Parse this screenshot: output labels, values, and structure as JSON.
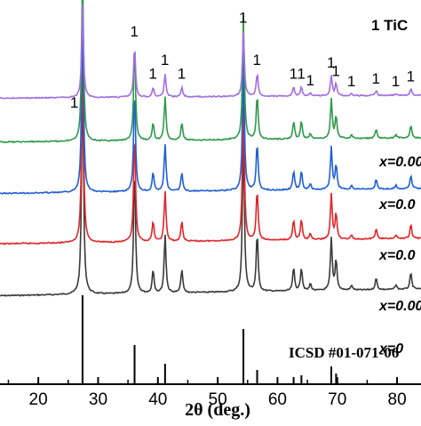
{
  "chart_data": {
    "type": "line",
    "title": "1 TiC",
    "xlabel": "2θ (deg.)",
    "xlim": [
      13,
      84
    ],
    "x_ticks": [
      20,
      30,
      40,
      50,
      60,
      70,
      80
    ],
    "x_tick_labels": [
      "20",
      "30",
      "40",
      "50",
      "60",
      "70",
      "80"
    ],
    "peak_marker": "1",
    "series": [
      {
        "name": "x=0",
        "color": "#3a3a3a"
      },
      {
        "name": "x=0.00",
        "color": "#e2262a"
      },
      {
        "name": "x=0.0",
        "color": "#1f5fd6"
      },
      {
        "name": "x=0.0",
        "color": "#2e9a4a"
      },
      {
        "name": "x=0.00",
        "color": "#a26ee0"
      }
    ],
    "peaks": [
      {
        "two_theta": 27.4,
        "rel": 1.0,
        "labeled": true
      },
      {
        "two_theta": 36.1,
        "rel": 0.55,
        "labeled": true
      },
      {
        "two_theta": 39.2,
        "rel": 0.1,
        "labeled": true
      },
      {
        "two_theta": 41.2,
        "rel": 0.25,
        "labeled": true
      },
      {
        "two_theta": 44.0,
        "rel": 0.1,
        "labeled": true
      },
      {
        "two_theta": 54.3,
        "rel": 0.7,
        "labeled": true
      },
      {
        "two_theta": 56.6,
        "rel": 0.25,
        "labeled": true
      },
      {
        "two_theta": 62.7,
        "rel": 0.1,
        "labeled": true
      },
      {
        "two_theta": 64.0,
        "rel": 0.1,
        "labeled": true
      },
      {
        "two_theta": 65.5,
        "rel": 0.03,
        "labeled": true
      },
      {
        "two_theta": 69.0,
        "rel": 0.22,
        "labeled": true
      },
      {
        "two_theta": 69.8,
        "rel": 0.13,
        "labeled": true
      },
      {
        "two_theta": 72.4,
        "rel": 0.02,
        "labeled": true
      },
      {
        "two_theta": 76.5,
        "rel": 0.05,
        "labeled": true
      },
      {
        "two_theta": 79.8,
        "rel": 0.02,
        "labeled": true
      },
      {
        "two_theta": 82.3,
        "rel": 0.07,
        "labeled": true
      }
    ],
    "reference": {
      "label": "ICSD #01-071-06",
      "sticks": [
        {
          "two_theta": 27.4,
          "rel": 1.0
        },
        {
          "two_theta": 36.1,
          "rel": 0.44
        },
        {
          "two_theta": 41.2,
          "rel": 0.23
        },
        {
          "two_theta": 54.3,
          "rel": 0.62
        },
        {
          "two_theta": 56.6,
          "rel": 0.16
        },
        {
          "two_theta": 62.7,
          "rel": 0.08
        },
        {
          "two_theta": 64.0,
          "rel": 0.1
        },
        {
          "two_theta": 69.0,
          "rel": 0.2
        },
        {
          "two_theta": 69.8,
          "rel": 0.12
        }
      ]
    },
    "grid": false
  }
}
